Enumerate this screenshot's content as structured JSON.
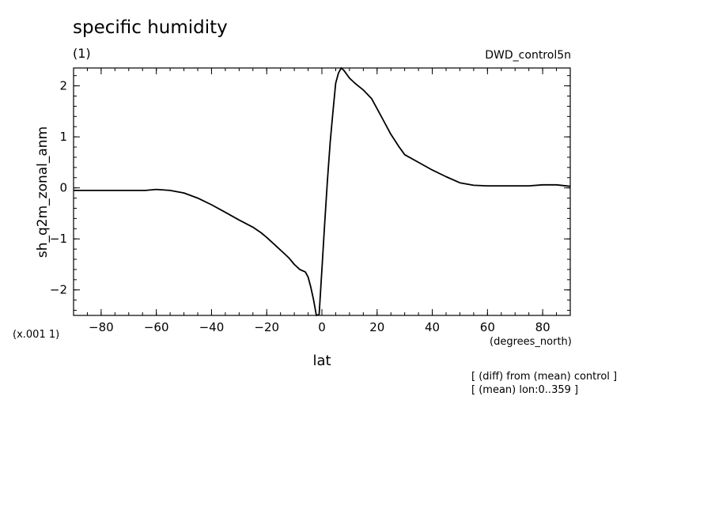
{
  "chart_data": {
    "type": "line",
    "title": "specific humidity",
    "units_label": "(1)",
    "experiment": "DWD_control5n",
    "xlabel": "lat",
    "xunits": "(degrees_north)",
    "ylabel": "sh_q2m_zonal_anm",
    "yscale_note": "(x.001 1)",
    "notes": [
      "[ (diff) from (mean) control ]",
      "[ (mean) lon:0..359 ]"
    ],
    "xlim": [
      -90,
      90
    ],
    "ylim": [
      -2.5,
      2.35
    ],
    "xticks": [
      -80,
      -60,
      -40,
      -20,
      0,
      20,
      40,
      60,
      80
    ],
    "xtick_labels": [
      "−80",
      "−60",
      "−40",
      "−20",
      "0",
      "20",
      "40",
      "60",
      "80"
    ],
    "yticks": [
      -2,
      -1,
      0,
      1,
      2
    ],
    "ytick_labels": [
      "−2",
      "−1",
      "0",
      "1",
      "2"
    ],
    "grid": false,
    "series": [
      {
        "color": "#000000",
        "x": [
          -90,
          -80,
          -70,
          -64,
          -60,
          -55,
          -50,
          -45,
          -40,
          -35,
          -30,
          -25,
          -22,
          -20,
          -17,
          -14,
          -12,
          -10,
          -8,
          -6,
          -5,
          -4,
          -3,
          -2,
          -1,
          0,
          1,
          2,
          3,
          4,
          5,
          6,
          7,
          8,
          10,
          12,
          15,
          18,
          20,
          22,
          25,
          28,
          30,
          35,
          40,
          45,
          50,
          55,
          60,
          65,
          70,
          75,
          80,
          85,
          90
        ],
        "y": [
          -0.05,
          -0.05,
          -0.05,
          -0.05,
          -0.03,
          -0.05,
          -0.1,
          -0.2,
          -0.33,
          -0.48,
          -0.63,
          -0.77,
          -0.88,
          -0.97,
          -1.12,
          -1.27,
          -1.37,
          -1.5,
          -1.6,
          -1.65,
          -1.75,
          -1.95,
          -2.2,
          -2.5,
          -2.48,
          -1.6,
          -0.7,
          0.15,
          0.9,
          1.5,
          2.05,
          2.25,
          2.35,
          2.3,
          2.15,
          2.05,
          1.92,
          1.75,
          1.55,
          1.35,
          1.05,
          0.8,
          0.65,
          0.5,
          0.35,
          0.22,
          0.1,
          0.05,
          0.04,
          0.04,
          0.04,
          0.04,
          0.06,
          0.06,
          0.03
        ]
      }
    ]
  }
}
